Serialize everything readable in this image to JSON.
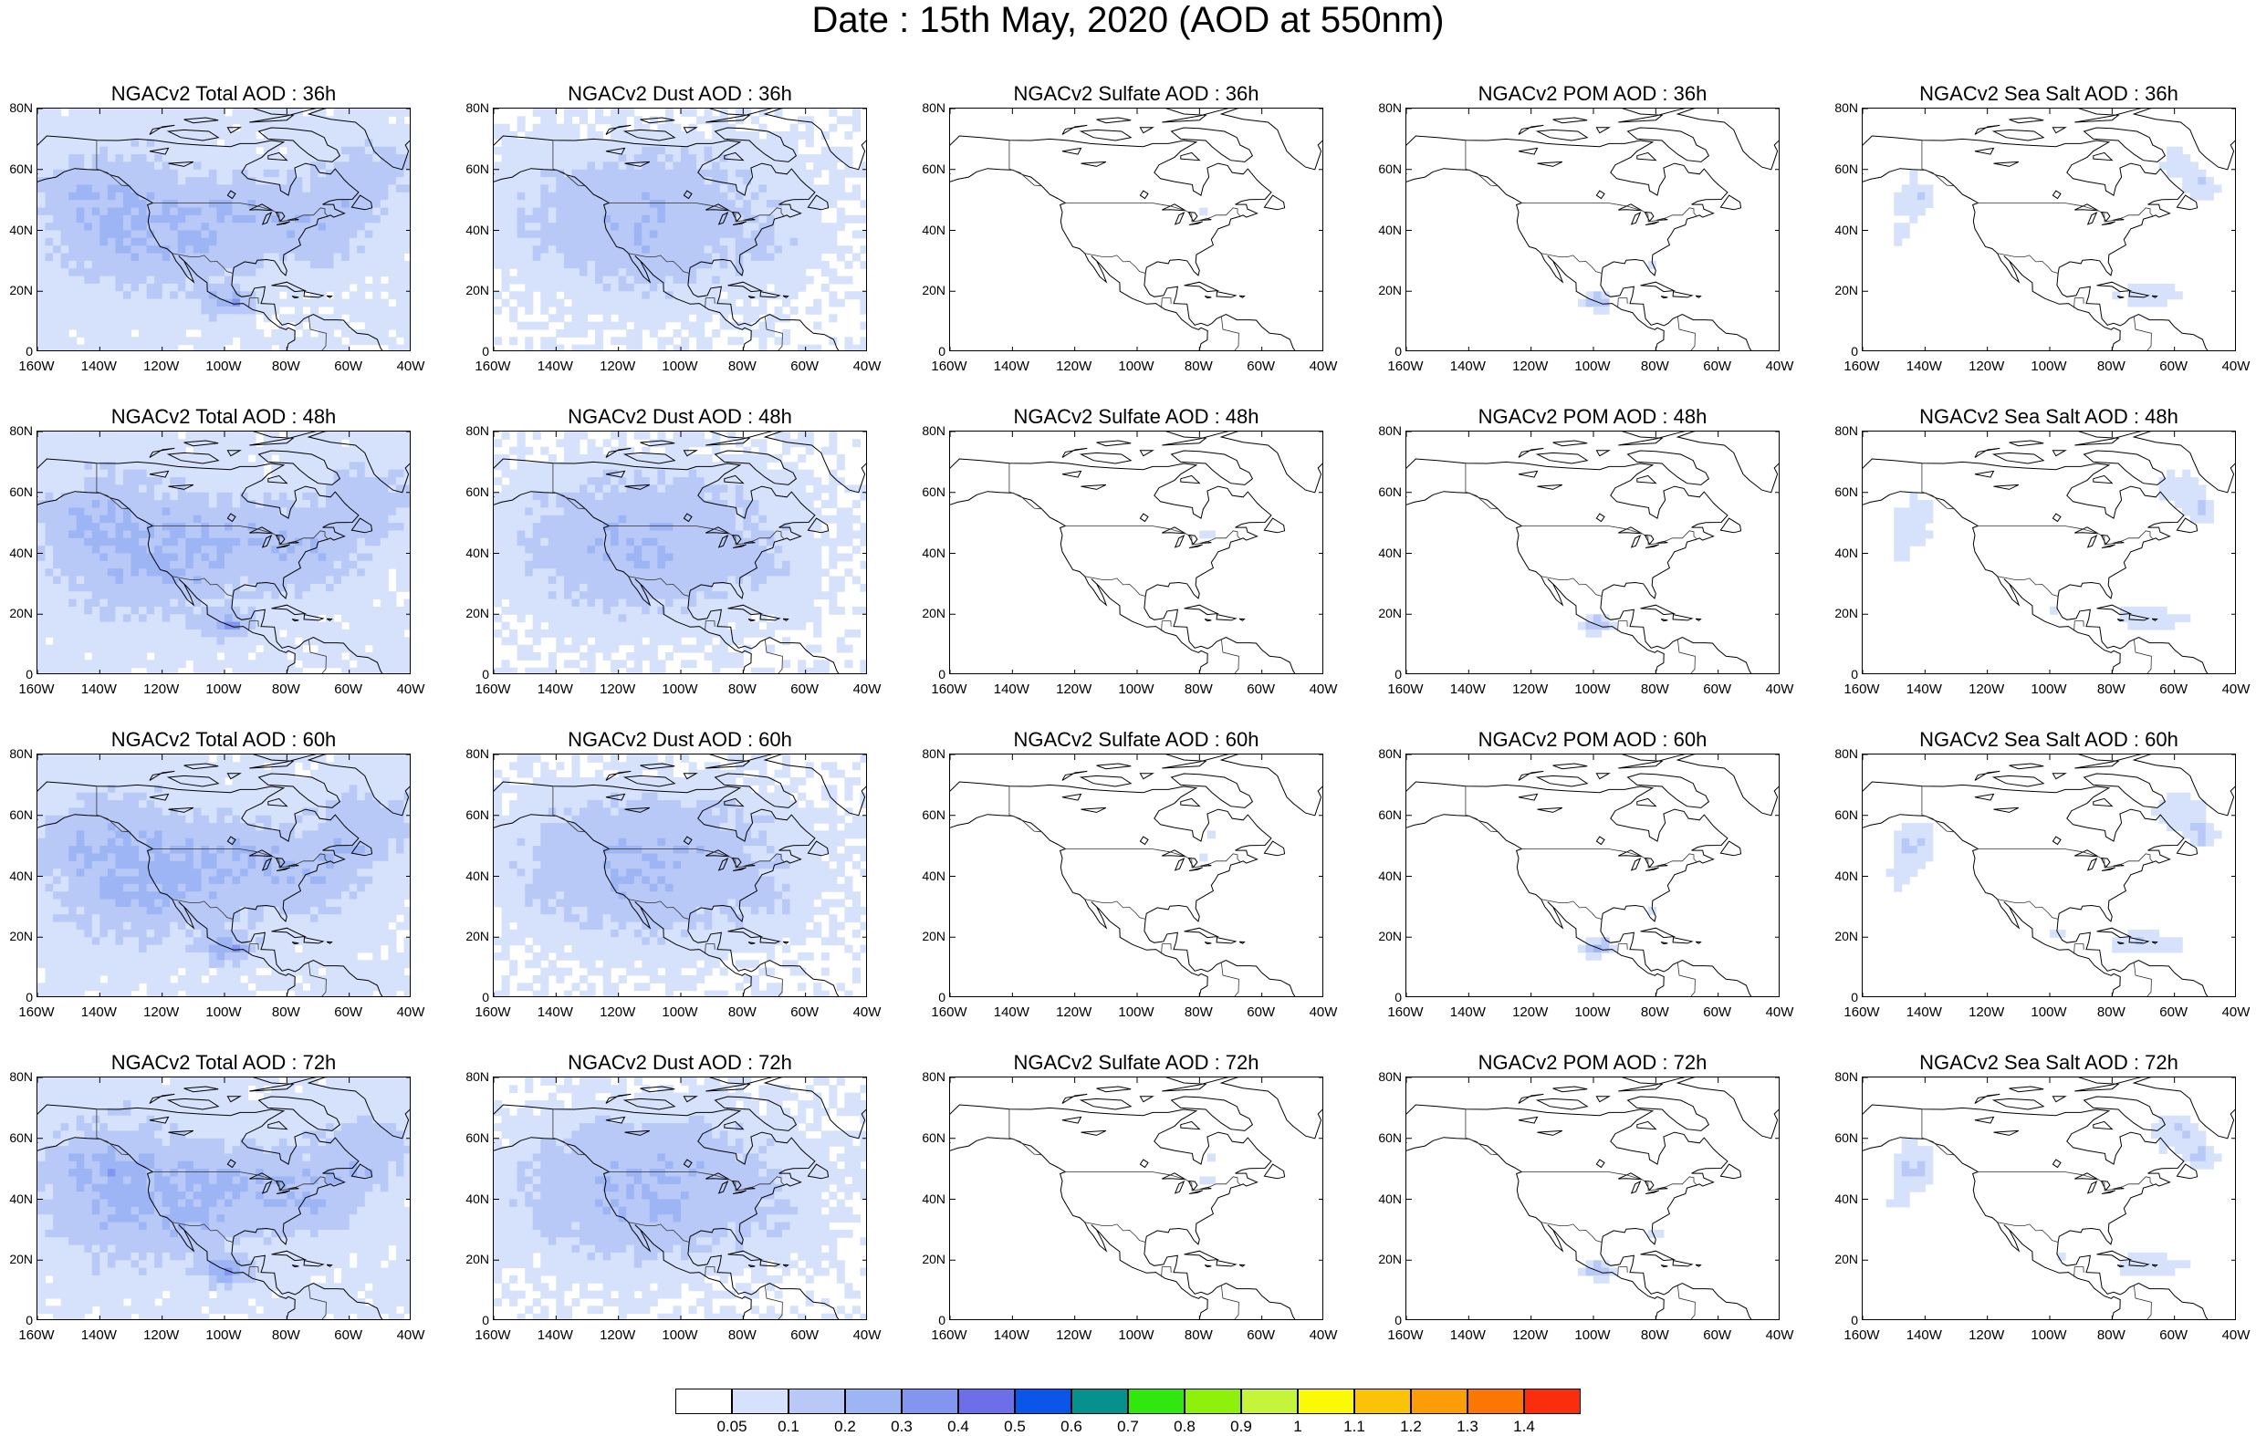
{
  "title": "Date : 15th May, 2020 (AOD at 550nm)",
  "lat_ticks": [
    "80N",
    "60N",
    "40N",
    "20N",
    "0"
  ],
  "lon_ticks": [
    "160W",
    "140W",
    "120W",
    "100W",
    "80W",
    "60W",
    "40W"
  ],
  "panels": [
    {
      "title": "NGACv2 Total AOD : 36h",
      "variable": "total",
      "lead_hours": 36
    },
    {
      "title": "NGACv2 Dust AOD : 36h",
      "variable": "dust",
      "lead_hours": 36
    },
    {
      "title": "NGACv2 Sulfate AOD : 36h",
      "variable": "sulfate",
      "lead_hours": 36
    },
    {
      "title": "NGACv2 POM AOD : 36h",
      "variable": "pom",
      "lead_hours": 36
    },
    {
      "title": "NGACv2 Sea Salt AOD : 36h",
      "variable": "seasalt",
      "lead_hours": 36
    },
    {
      "title": "NGACv2 Total AOD : 48h",
      "variable": "total",
      "lead_hours": 48
    },
    {
      "title": "NGACv2 Dust AOD : 48h",
      "variable": "dust",
      "lead_hours": 48
    },
    {
      "title": "NGACv2 Sulfate AOD : 48h",
      "variable": "sulfate",
      "lead_hours": 48
    },
    {
      "title": "NGACv2 POM AOD : 48h",
      "variable": "pom",
      "lead_hours": 48
    },
    {
      "title": "NGACv2 Sea Salt AOD : 48h",
      "variable": "seasalt",
      "lead_hours": 48
    },
    {
      "title": "NGACv2 Total AOD : 60h",
      "variable": "total",
      "lead_hours": 60
    },
    {
      "title": "NGACv2 Dust AOD : 60h",
      "variable": "dust",
      "lead_hours": 60
    },
    {
      "title": "NGACv2 Sulfate AOD : 60h",
      "variable": "sulfate",
      "lead_hours": 60
    },
    {
      "title": "NGACv2 POM AOD : 60h",
      "variable": "pom",
      "lead_hours": 60
    },
    {
      "title": "NGACv2 Sea Salt AOD : 60h",
      "variable": "seasalt",
      "lead_hours": 60
    },
    {
      "title": "NGACv2 Total AOD : 72h",
      "variable": "total",
      "lead_hours": 72
    },
    {
      "title": "NGACv2 Dust AOD : 72h",
      "variable": "dust",
      "lead_hours": 72
    },
    {
      "title": "NGACv2 Sulfate AOD : 72h",
      "variable": "sulfate",
      "lead_hours": 72
    },
    {
      "title": "NGACv2 POM AOD : 72h",
      "variable": "pom",
      "lead_hours": 72
    },
    {
      "title": "NGACv2 Sea Salt  AOD : 72h",
      "variable": "seasalt",
      "lead_hours": 72
    }
  ],
  "colorbar": {
    "labels": [
      "0.05",
      "0.1",
      "0.2",
      "0.3",
      "0.4",
      "0.5",
      "0.6",
      "0.7",
      "0.8",
      "0.9",
      "1",
      "1.1",
      "1.2",
      "1.3",
      "1.4"
    ],
    "colors": [
      "#ffffff",
      "#d6e2fb",
      "#b8c9f7",
      "#9db5f4",
      "#8296f0",
      "#6d6fe9",
      "#0a55ea",
      "#06918d",
      "#30e80e",
      "#8ef10b",
      "#c4f53a",
      "#fafa07",
      "#fac308",
      "#fa9d07",
      "#fa7605",
      "#fa2e0c"
    ]
  }
}
